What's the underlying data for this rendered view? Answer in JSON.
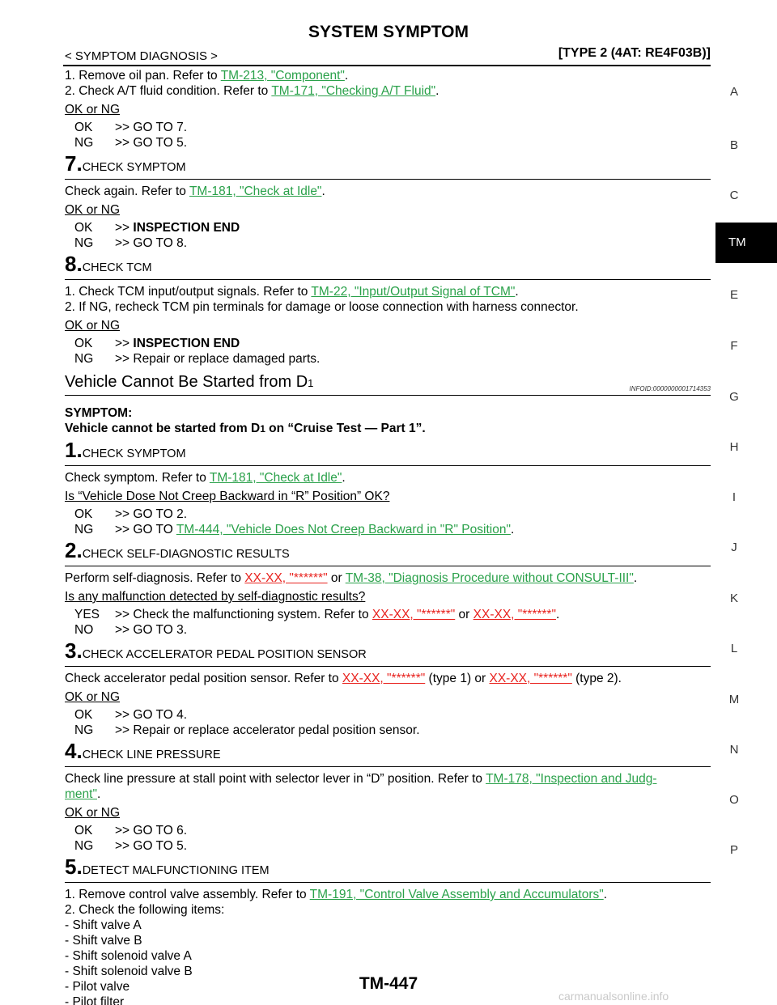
{
  "header": {
    "title": "SYSTEM SYMPTOM",
    "section": "< SYMPTOM DIAGNOSIS >",
    "type": "[TYPE 2 (4AT: RE4F03B)]"
  },
  "side_index": {
    "letters": [
      "A",
      "B",
      "C",
      "E",
      "F",
      "G",
      "H",
      "I",
      "J",
      "K",
      "L",
      "M",
      "N",
      "O",
      "P"
    ],
    "active": "TM"
  },
  "top": {
    "s1_pre": "1. Remove oil pan. Refer to ",
    "s1_link": "TM-213, \"Component\"",
    "s1_post": ".",
    "s2_pre": "2. Check A/T fluid condition. Refer to ",
    "s2_link": "TM-171, \"Checking A/T Fluid\"",
    "s2_post": ".",
    "q": "OK or NG",
    "ok_label": "OK",
    "ok_text": ">> GO TO 7.",
    "ng_label": "NG",
    "ng_text": ">> GO TO 5."
  },
  "step7": {
    "num": "7.",
    "title": "CHECK SYMPTOM",
    "pre": "Check again. Refer to ",
    "link": "TM-181, \"Check at Idle\"",
    "post": ".",
    "q": "OK or NG",
    "ok_label": "OK",
    "ok_pre": ">> ",
    "ok_bold": "INSPECTION END",
    "ng_label": "NG",
    "ng_text": ">> GO TO 8."
  },
  "step8": {
    "num": "8.",
    "title": "CHECK TCM",
    "l1_pre": "1. Check TCM input/output signals. Refer to ",
    "l1_link": "TM-22, \"Input/Output Signal of TCM\"",
    "l1_post": ".",
    "l2": "2. If NG, recheck TCM pin terminals for damage or loose connection with harness connector.",
    "q": "OK or NG",
    "ok_label": "OK",
    "ok_pre": ">> ",
    "ok_bold": "INSPECTION END",
    "ng_label": "NG",
    "ng_text": ">> Repair or replace damaged parts."
  },
  "section": {
    "title": "Vehicle Cannot Be Started from D",
    "title_sub": "1",
    "infoid": "INFOID:0000000001714353"
  },
  "symptom": {
    "label": "SYMPTOM:",
    "text_pre": "Vehicle cannot be started from D",
    "text_sub": "1",
    "text_post": " on “Cruise Test — Part 1”."
  },
  "step1": {
    "num": "1.",
    "title": "CHECK SYMPTOM",
    "pre": "Check symptom. Refer to ",
    "link": "TM-181, \"Check at Idle\"",
    "post": ".",
    "q": "Is “Vehicle Dose Not Creep Backward in “R” Position” OK?",
    "ok_label": "OK",
    "ok_text": ">> GO TO 2.",
    "ng_label": "NG",
    "ng_pre": ">> GO TO ",
    "ng_link": "TM-444, \"Vehicle Does Not Creep Backward in \"R\" Position\"",
    "ng_post": "."
  },
  "step2": {
    "num": "2.",
    "title": "CHECK SELF-DIAGNOSTIC RESULTS",
    "pre": "Perform self-diagnosis. Refer to ",
    "link1": "XX-XX, \"******\"",
    "mid": " or ",
    "link2": "TM-38, \"Diagnosis Procedure without CONSULT-III\"",
    "post": ".",
    "q": "Is any malfunction detected by self-diagnostic results?",
    "yes_label": "YES",
    "yes_pre": ">> Check the malfunctioning system. Refer to ",
    "yes_link1": "XX-XX, \"******\"",
    "yes_mid": " or ",
    "yes_link2": "XX-XX, \"******\"",
    "yes_post": ".",
    "no_label": "NO",
    "no_text": ">> GO TO 3."
  },
  "step3": {
    "num": "3.",
    "title": "CHECK ACCELERATOR PEDAL POSITION SENSOR",
    "pre": "Check accelerator pedal position sensor. Refer to ",
    "link1": "XX-XX, \"******\"",
    "mid": " (type 1) or ",
    "link2": "XX-XX, \"******\"",
    "post": " (type 2).",
    "q": "OK or NG",
    "ok_label": "OK",
    "ok_text": ">> GO TO 4.",
    "ng_label": "NG",
    "ng_text": ">> Repair or replace accelerator pedal position sensor."
  },
  "step4": {
    "num": "4.",
    "title": "CHECK LINE PRESSURE",
    "pre": "Check line pressure at stall point with selector lever in “D” position. Refer to ",
    "link_a": "TM-178, \"Inspection and Judg-",
    "link_b": "ment\"",
    "post": ".",
    "q": "OK or NG",
    "ok_label": "OK",
    "ok_text": ">> GO TO 6.",
    "ng_label": "NG",
    "ng_text": ">> GO TO 5."
  },
  "step5": {
    "num": "5.",
    "title": "DETECT MALFUNCTIONING ITEM",
    "l1_pre": "1. Remove control valve assembly. Refer to ",
    "l1_link": "TM-191, \"Control Valve Assembly and Accumulators\"",
    "l1_post": ".",
    "l2": "2. Check the following items:",
    "items": [
      "-   Shift valve A",
      "-   Shift valve B",
      "-   Shift solenoid valve A",
      "-   Shift solenoid valve B",
      "-   Pilot valve",
      "-   Pilot filter"
    ]
  },
  "footer": {
    "page": "TM-447",
    "watermark": "carmanualsonline.info"
  }
}
